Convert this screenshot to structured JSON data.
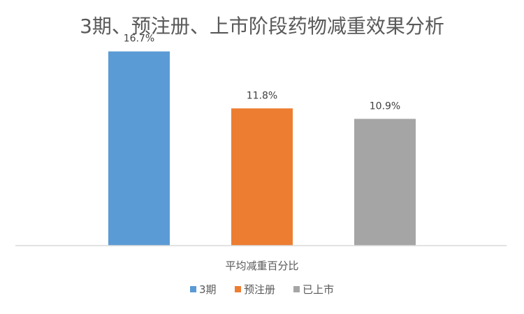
{
  "chart_data": {
    "type": "bar",
    "title": "3期、预注册、上市阶段药物减重效果分析",
    "categories": [
      "平均减重百分比"
    ],
    "series": [
      {
        "name": "3期",
        "values": [
          16.7
        ],
        "label": "16.7%",
        "color": "#5B9BD5"
      },
      {
        "name": "预注册",
        "values": [
          11.8
        ],
        "label": "11.8%",
        "color": "#ED7D31"
      },
      {
        "name": "已上市",
        "values": [
          10.9
        ],
        "label": "10.9%",
        "color": "#A5A5A5"
      }
    ],
    "ylim": [
      0,
      18
    ],
    "grid": false,
    "legend": "bottom"
  }
}
